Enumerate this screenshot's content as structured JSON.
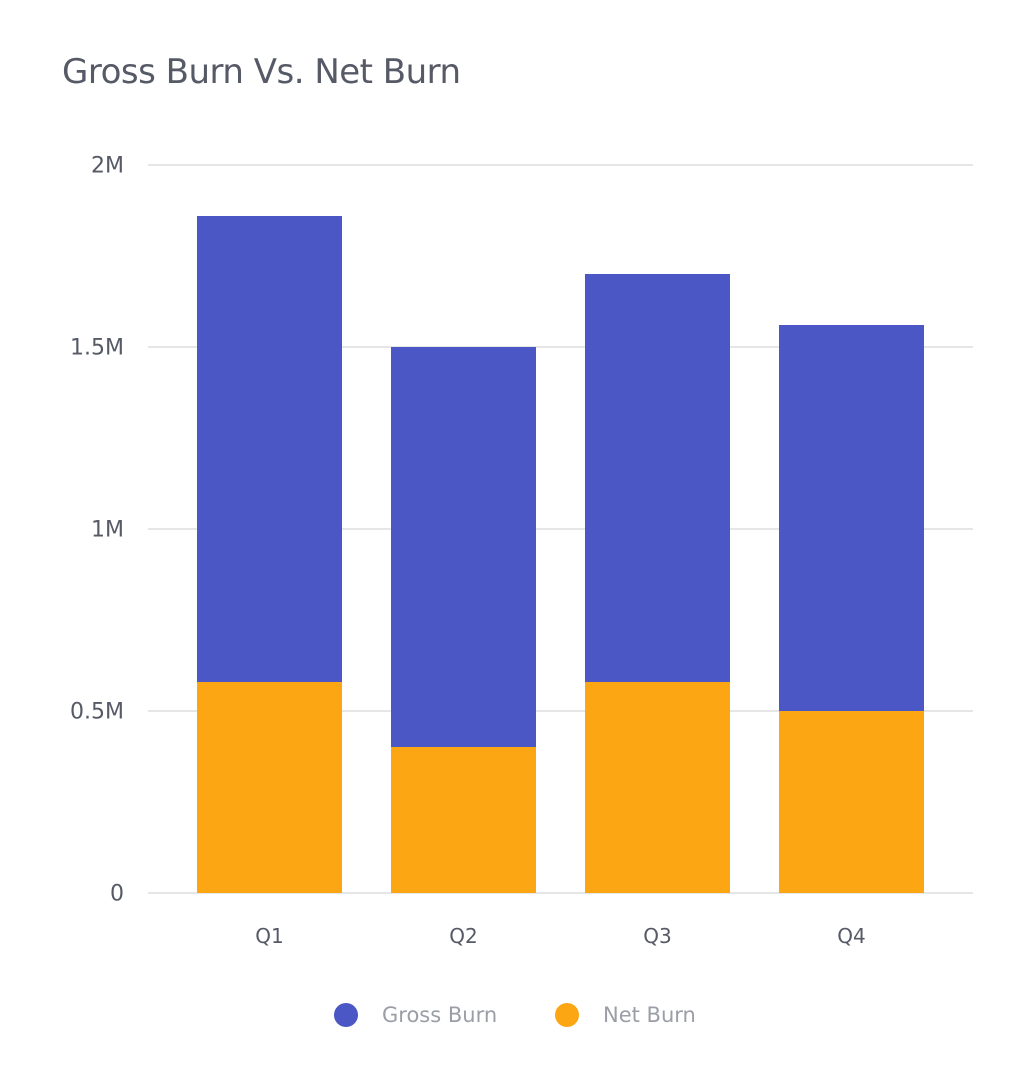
{
  "title": "Gross Burn Vs. Net Burn",
  "colors": {
    "gross": "#4a57c5",
    "net": "#fba612",
    "grid": "#e6e6e8",
    "text": "#565a66",
    "legend_text": "#9b9ea6"
  },
  "y_axis": {
    "ticks": [
      "0",
      "0.5M",
      "1M",
      "1.5M",
      "2M"
    ]
  },
  "x_axis": {
    "ticks": [
      "Q1",
      "Q2",
      "Q3",
      "Q4"
    ]
  },
  "legend": [
    {
      "label": "Gross Burn",
      "color": "#4a57c5"
    },
    {
      "label": "Net Burn",
      "color": "#fba612"
    }
  ],
  "chart_data": {
    "type": "bar",
    "stacked": true,
    "title": "Gross Burn Vs. Net Burn",
    "xlabel": "",
    "ylabel": "",
    "categories": [
      "Q1",
      "Q2",
      "Q3",
      "Q4"
    ],
    "series": [
      {
        "name": "Gross Burn",
        "values": [
          1860000,
          1500000,
          1700000,
          1560000
        ]
      },
      {
        "name": "Net Burn",
        "values": [
          580000,
          400000,
          580000,
          500000
        ]
      }
    ],
    "ylim": [
      0,
      2000000
    ],
    "yticks": [
      0,
      500000,
      1000000,
      1500000,
      2000000
    ],
    "grid": true,
    "legend_position": "bottom"
  }
}
